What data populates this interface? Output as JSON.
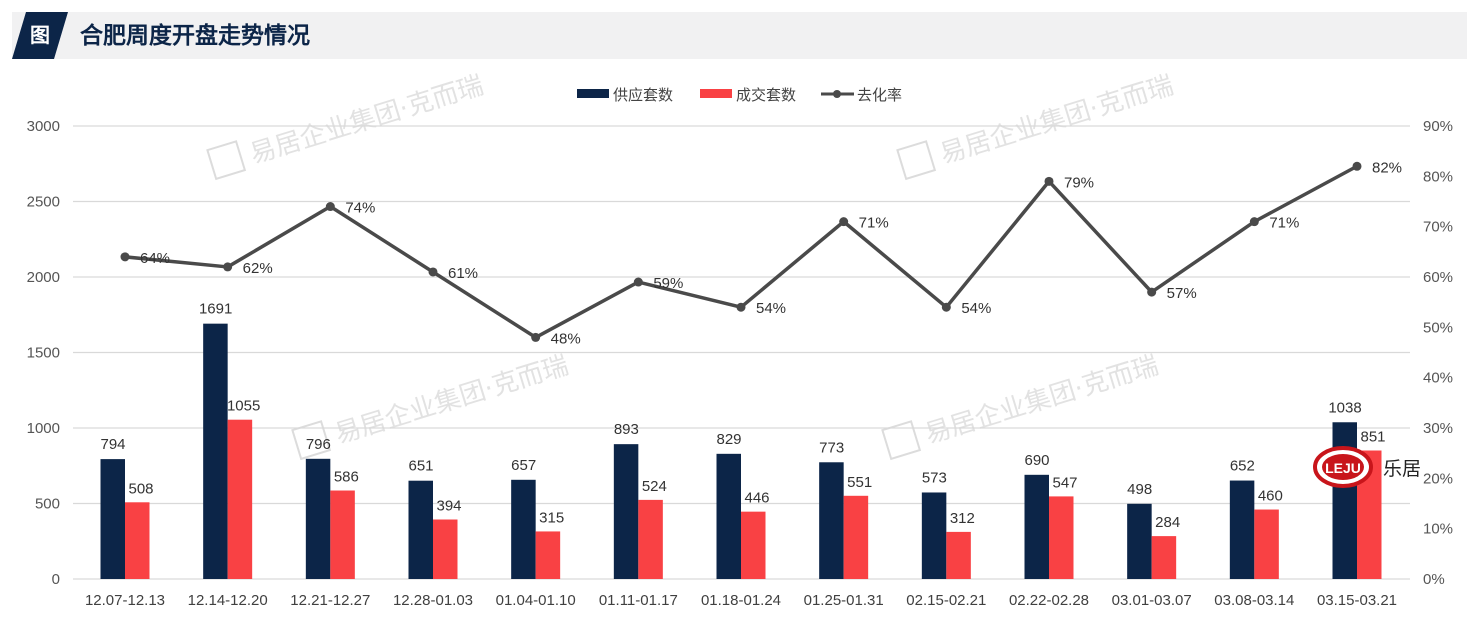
{
  "header": {
    "tag": "图",
    "title": "合肥周度开盘走势情况"
  },
  "watermark": {
    "text": "易居企业集团·克而瑞"
  },
  "logo": {
    "mark": "LEJU",
    "text": "乐居"
  },
  "colors": {
    "supply": "#0c2548",
    "deal": "#f94144",
    "rate": "#4a4a4a",
    "grid": "#d9d9d9",
    "header_bg": "#f1f1f2"
  },
  "chart_data": {
    "type": "bar",
    "title": "合肥周度开盘走势情况",
    "categories": [
      "12.07-12.13",
      "12.14-12.20",
      "12.21-12.27",
      "12.28-01.03",
      "01.04-01.10",
      "01.11-01.17",
      "01.18-01.24",
      "01.25-01.31",
      "02.15-02.21",
      "02.22-02.28",
      "03.01-03.07",
      "03.08-03.14",
      "03.15-03.21"
    ],
    "series": [
      {
        "name": "供应套数",
        "type": "bar",
        "axis": "left",
        "values": [
          794,
          1691,
          796,
          651,
          657,
          893,
          829,
          773,
          573,
          690,
          498,
          652,
          1038
        ]
      },
      {
        "name": "成交套数",
        "type": "bar",
        "axis": "left",
        "values": [
          508,
          1055,
          586,
          394,
          315,
          524,
          446,
          551,
          312,
          547,
          284,
          460,
          851
        ]
      },
      {
        "name": "去化率",
        "type": "line",
        "axis": "right",
        "values": [
          64,
          62,
          74,
          61,
          48,
          59,
          54,
          71,
          54,
          79,
          57,
          71,
          82
        ],
        "labels": [
          "64%",
          "62%",
          "74%",
          "61%",
          "48%",
          "59%",
          "54%",
          "71%",
          "54%",
          "79%",
          "57%",
          "71%",
          "82%"
        ]
      }
    ],
    "left_axis": {
      "ylim": [
        0,
        3000
      ],
      "ticks": [
        "0",
        "500",
        "1000",
        "1500",
        "2000",
        "2500",
        "3000"
      ]
    },
    "right_axis": {
      "ylim": [
        0,
        90
      ],
      "ticks": [
        "0%",
        "10%",
        "20%",
        "30%",
        "40%",
        "50%",
        "60%",
        "70%",
        "80%",
        "90%"
      ]
    },
    "xlabel": "",
    "ylabel": "",
    "grid": true,
    "legend_position": "top",
    "legend": [
      "供应套数",
      "成交套数",
      "去化率"
    ]
  }
}
